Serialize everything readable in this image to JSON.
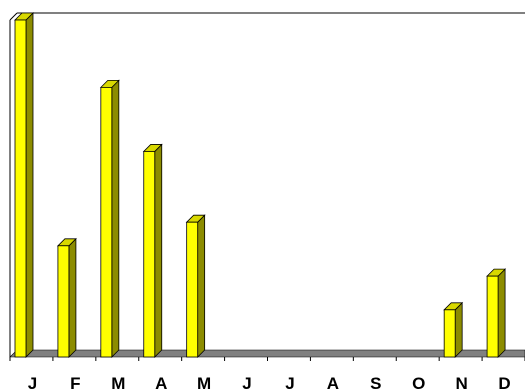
{
  "chart_data": {
    "type": "bar",
    "title": "",
    "xlabel": "",
    "ylabel": "",
    "categories": [
      "J",
      "F",
      "M",
      "A",
      "M",
      "J",
      "J",
      "A",
      "S",
      "O",
      "N",
      "D"
    ],
    "values": [
      100,
      33,
      80,
      61,
      40,
      0,
      0,
      0,
      0,
      0,
      14,
      24
    ],
    "ylim": [
      0,
      100
    ],
    "grid": false,
    "legend": "none",
    "style": "3d"
  },
  "colors": {
    "bar_front": "#ffff00",
    "bar_side": "#8c8c00",
    "bar_top": "#d8d800",
    "floor": "#808080",
    "axis": "#000000"
  }
}
